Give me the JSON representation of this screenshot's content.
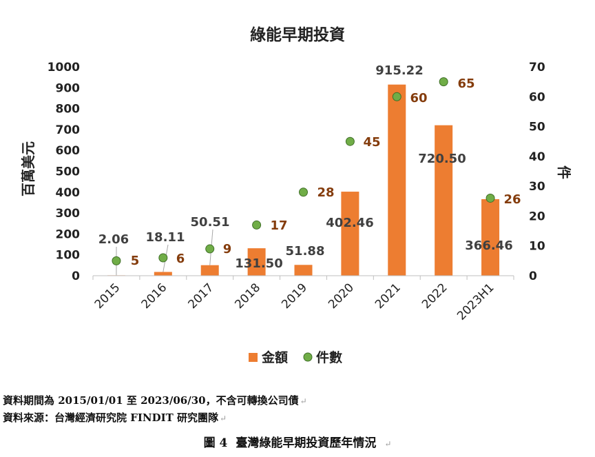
{
  "chart_data": {
    "type": "bar",
    "title": "綠能早期投資",
    "categories": [
      "2015",
      "2016",
      "2017",
      "2018",
      "2019",
      "2020",
      "2021",
      "2022",
      "2023H1"
    ],
    "series": [
      {
        "name": "金額",
        "type": "bar",
        "axis": "left",
        "color": "#ED7D31",
        "values": [
          2.06,
          18.11,
          50.51,
          131.5,
          51.88,
          402.46,
          915.22,
          720.5,
          366.46
        ],
        "labels": [
          "2.06",
          "18.11",
          "50.51",
          "131.50",
          "51.88",
          "402.46",
          "915.22",
          "720.50",
          "366.46"
        ]
      },
      {
        "name": "件數",
        "type": "scatter",
        "axis": "right",
        "color": "#70AD47",
        "values": [
          5,
          6,
          9,
          17,
          28,
          45,
          60,
          65,
          26
        ],
        "labels": [
          "5",
          "6",
          "9",
          "17",
          "28",
          "45",
          "60",
          "65",
          "26"
        ]
      }
    ],
    "ylabel_left": "百萬美元",
    "ylabel_right": "件",
    "ylim_left": [
      0,
      1000
    ],
    "ylim_right": [
      0,
      70
    ],
    "yticks_left": [
      "0",
      "100",
      "200",
      "300",
      "400",
      "500",
      "600",
      "700",
      "800",
      "900",
      "1000"
    ],
    "yticks_right": [
      "0",
      "10",
      "20",
      "30",
      "40",
      "50",
      "60",
      "70"
    ],
    "grid": false,
    "legend": "bottom",
    "label_color_left": "#404040",
    "label_color_right": "#843C0C"
  },
  "notes": {
    "period": "資料期間為 2015/01/01 至 2023/06/30，不含可轉換公司債",
    "source": "資料來源：台灣經濟研究院 FINDIT 研究團隊"
  },
  "caption": {
    "number": "圖 4",
    "title": "臺灣綠能早期投資歷年情況"
  }
}
